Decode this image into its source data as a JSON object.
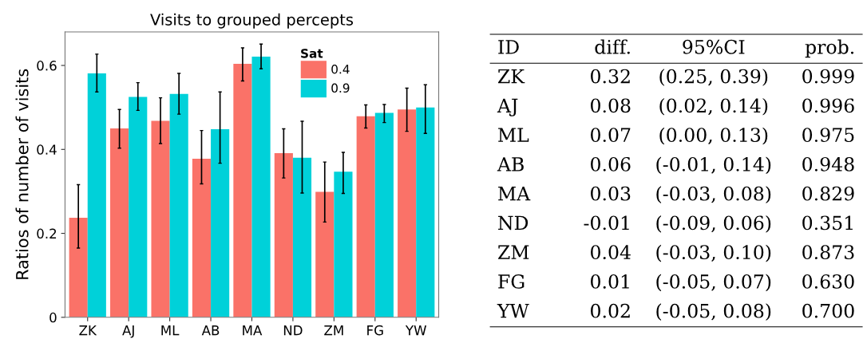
{
  "chart_data": [
    {
      "type": "bar",
      "title": "Visits to grouped percepts",
      "ylabel": "Ratios of number of visits",
      "legend_title": "Sat",
      "legend": "top right",
      "categories": [
        "ZK",
        "AJ",
        "ML",
        "AB",
        "MA",
        "ND",
        "ZM",
        "FG",
        "YW"
      ],
      "ylim": [
        0,
        0.68
      ],
      "yticks": [
        0,
        0.2,
        0.4,
        0.6
      ],
      "series": [
        {
          "name": "0.4",
          "color": "#fa7268",
          "values": [
            0.237,
            0.45,
            0.468,
            0.378,
            0.604,
            0.391,
            0.299,
            0.479,
            0.495
          ],
          "errors": [
            [
              0.165,
              0.316
            ],
            [
              0.403,
              0.495
            ],
            [
              0.414,
              0.523
            ],
            [
              0.318,
              0.445
            ],
            [
              0.563,
              0.642
            ],
            [
              0.332,
              0.449
            ],
            [
              0.227,
              0.37
            ],
            [
              0.451,
              0.506
            ],
            [
              0.443,
              0.546
            ]
          ]
        },
        {
          "name": "0.9",
          "color": "#00d1d9",
          "values": [
            0.581,
            0.525,
            0.532,
            0.448,
            0.621,
            0.38,
            0.347,
            0.487,
            0.5
          ],
          "errors": [
            [
              0.537,
              0.627
            ],
            [
              0.493,
              0.559
            ],
            [
              0.484,
              0.581
            ],
            [
              0.367,
              0.537
            ],
            [
              0.592,
              0.651
            ],
            [
              0.296,
              0.467
            ],
            [
              0.295,
              0.393
            ],
            [
              0.464,
              0.507
            ],
            [
              0.438,
              0.554
            ]
          ]
        }
      ]
    },
    {
      "type": "other",
      "categories": [
        "ID",
        "diff.",
        "95%CI",
        "prob."
      ],
      "annotations": [
        "ZK",
        "0.32",
        "(0.25, 0.39)",
        "0.999",
        "AJ",
        "0.08",
        "(0.02, 0.14)",
        "0.996",
        "ML",
        "0.07",
        "(0.00, 0.13)",
        "0.975",
        "AB",
        "0.06",
        "(-0.01, 0.14)",
        "0.948",
        "MA",
        "0.03",
        "(-0.03, 0.08)",
        "0.829",
        "ND",
        "-0.01",
        "(-0.09, 0.06)",
        "0.351",
        "ZM",
        "0.04",
        "(-0.03, 0.10)",
        "0.873",
        "FG",
        "0.01",
        "(-0.05, 0.07)",
        "0.630",
        "YW",
        "0.02",
        "(-0.05, 0.08)",
        "0.700"
      ]
    }
  ]
}
